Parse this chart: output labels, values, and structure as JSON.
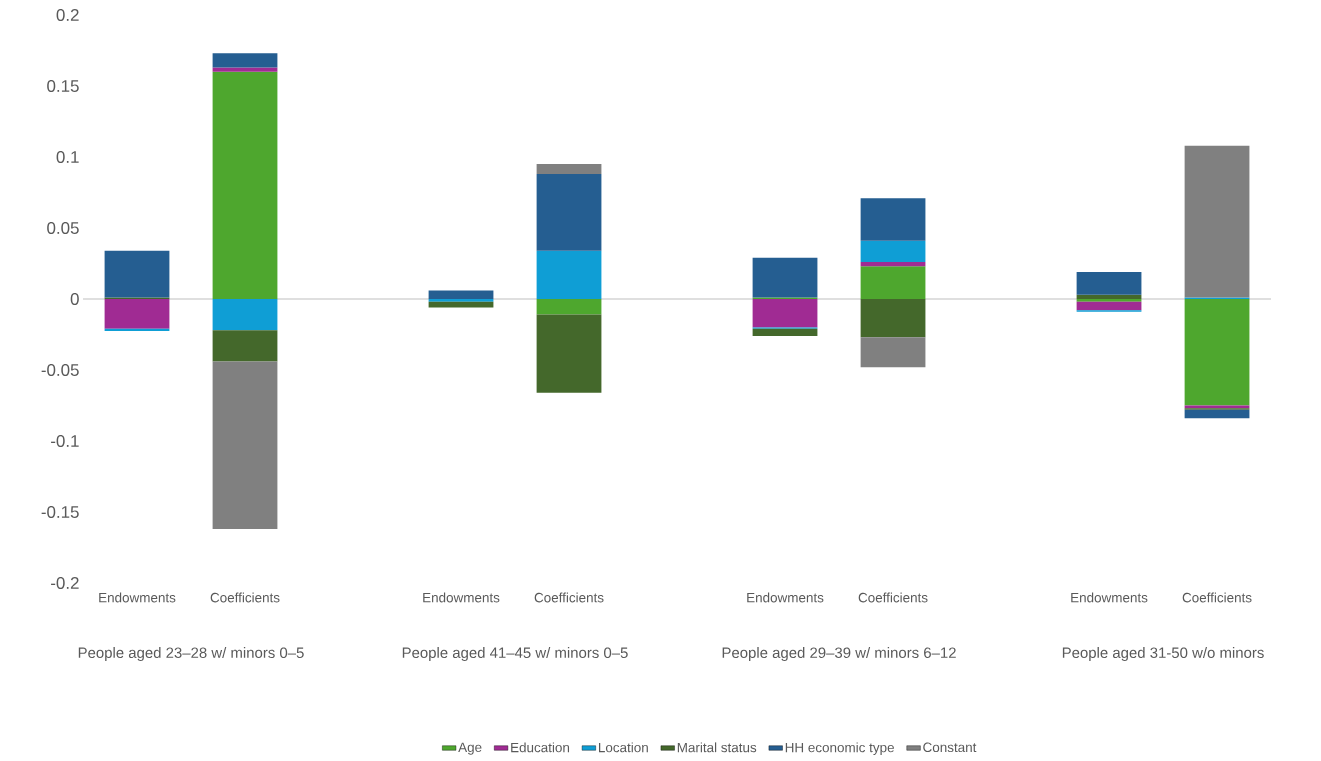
{
  "chart_data": {
    "type": "bar",
    "stacked": true,
    "categories": [
      "Endowments",
      "Coefficients",
      null,
      "Endowments",
      "Coefficients",
      null,
      "Endowments",
      "Coefficients",
      null,
      "Endowments",
      "Coefficients"
    ],
    "series": [
      {
        "name": "Age",
        "color": "#4ea72e",
        "values": [
          null,
          0.16,
          null,
          null,
          -0.011,
          null,
          0.001,
          0.023,
          null,
          -0.002,
          -0.075
        ]
      },
      {
        "name": "Education",
        "color": "#a02b93",
        "values": [
          -0.021,
          0.003,
          null,
          null,
          null,
          null,
          -0.02,
          0.003,
          null,
          -0.006,
          -0.002
        ]
      },
      {
        "name": "Location",
        "color": "#0f9ed5",
        "values": [
          -0.0015,
          -0.022,
          null,
          -0.002,
          0.034,
          null,
          -0.001,
          0.015,
          null,
          -0.001,
          0.001
        ]
      },
      {
        "name": "Marital status",
        "color": "#44682b",
        "values": [
          0.001,
          -0.022,
          null,
          -0.004,
          -0.055,
          null,
          -0.005,
          -0.027,
          null,
          0.003,
          -0.001
        ]
      },
      {
        "name": "HH economic type",
        "color": "#255e91",
        "values": [
          0.033,
          0.01,
          null,
          0.006,
          0.054,
          null,
          0.028,
          0.03,
          null,
          0.016,
          -0.006
        ]
      },
      {
        "name": "Constant",
        "color": "#808080",
        "values": [
          null,
          -0.118,
          null,
          null,
          0.007,
          null,
          null,
          -0.021,
          null,
          null,
          0.107
        ]
      }
    ],
    "ylim": [
      -0.2,
      0.2
    ],
    "yticks": [
      -0.2,
      -0.15,
      -0.1,
      -0.05,
      0,
      0.05,
      0.1,
      0.15,
      0.2
    ],
    "annotations": [
      "People aged 23–28 w/ minors 0–5",
      "People aged 41–45  w/ minors 0–5",
      "People aged 29–39  w/ minors 6–12",
      "People aged 31-50 w/o minors"
    ],
    "legend": "bottom"
  }
}
